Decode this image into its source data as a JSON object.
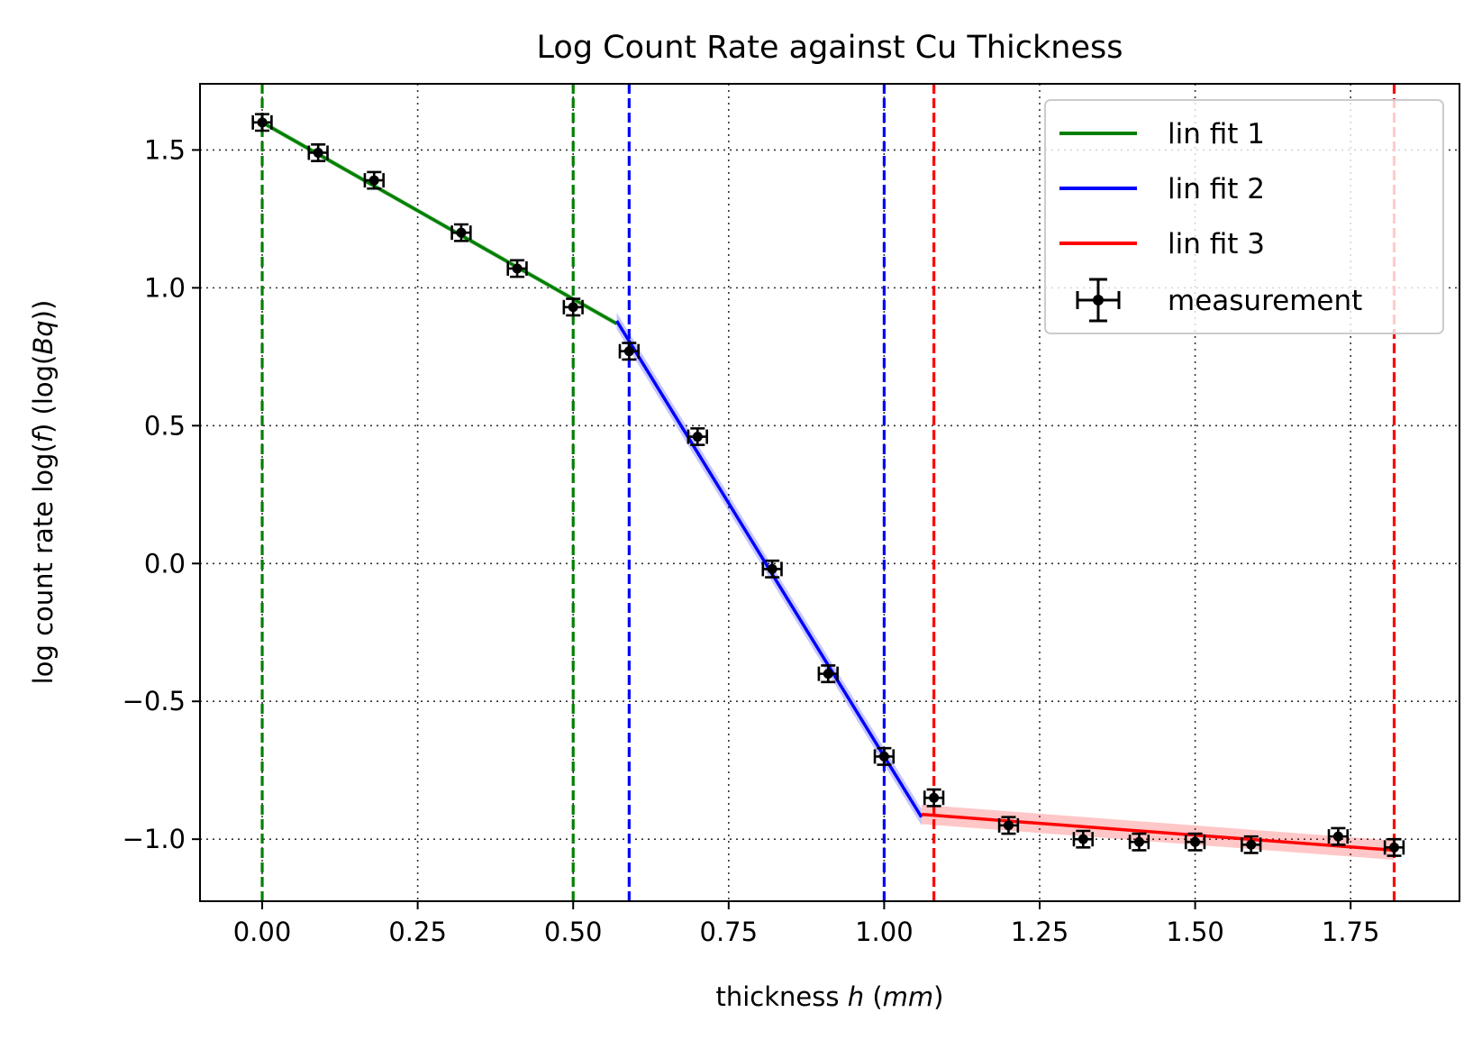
{
  "chart_data": {
    "type": "scatter",
    "title": "Log Count Rate against Cu Thickness",
    "xlabel": {
      "pre": "thickness ",
      "var": "h",
      "mid": " (",
      "unit": "mm",
      "post": ")"
    },
    "ylabel": {
      "pre": "log count rate log(",
      "var": "f",
      "mid": ") (log(",
      "unit": "Bq",
      "post": "))"
    },
    "xlim": [
      -0.1,
      1.925
    ],
    "ylim": [
      -1.225,
      1.74
    ],
    "xticks": [
      0.0,
      0.25,
      0.5,
      0.75,
      1.0,
      1.25,
      1.5,
      1.75
    ],
    "xtick_labels": [
      "0.00",
      "0.25",
      "0.50",
      "0.75",
      "1.00",
      "1.25",
      "1.50",
      "1.75"
    ],
    "yticks": [
      -1.0,
      -0.5,
      0.0,
      0.5,
      1.0,
      1.5
    ],
    "ytick_labels": [
      "−1.0",
      "−0.5",
      "0.0",
      "0.5",
      "1.0",
      "1.5"
    ],
    "grid": true,
    "legend_position": "top-right",
    "colors": {
      "fit1": "#008000",
      "fit2": "#0000ff",
      "fit3": "#ff0000",
      "measurement": "#000000",
      "grid": "#333333"
    },
    "measurement": {
      "name": "measurement",
      "x": [
        0.0,
        0.09,
        0.18,
        0.32,
        0.41,
        0.5,
        0.59,
        0.7,
        0.82,
        0.91,
        1.0,
        1.08,
        1.2,
        1.32,
        1.41,
        1.5,
        1.59,
        1.73,
        1.82
      ],
      "y": [
        1.6,
        1.49,
        1.39,
        1.2,
        1.07,
        0.93,
        0.77,
        0.46,
        -0.02,
        -0.4,
        -0.7,
        -0.85,
        -0.95,
        -1.0,
        -1.01,
        -1.01,
        -1.02,
        -0.99,
        -1.03
      ],
      "xerr": 0.015,
      "yerr": 0.03
    },
    "fits": [
      {
        "name": "lin fit 1",
        "color_key": "fit1",
        "x": [
          0.0,
          0.57
        ],
        "y": [
          1.6,
          0.87
        ],
        "band": 0.01,
        "bounds": [
          0.0,
          0.5
        ]
      },
      {
        "name": "lin fit 2",
        "color_key": "fit2",
        "x": [
          0.57,
          1.06
        ],
        "y": [
          0.88,
          -0.92
        ],
        "band": 0.03,
        "bounds": [
          0.59,
          1.0
        ]
      },
      {
        "name": "lin fit 3",
        "color_key": "fit3",
        "x": [
          1.06,
          1.82
        ],
        "y": [
          -0.91,
          -1.04
        ],
        "band": 0.035,
        "bounds": [
          1.08,
          1.82
        ]
      }
    ]
  }
}
